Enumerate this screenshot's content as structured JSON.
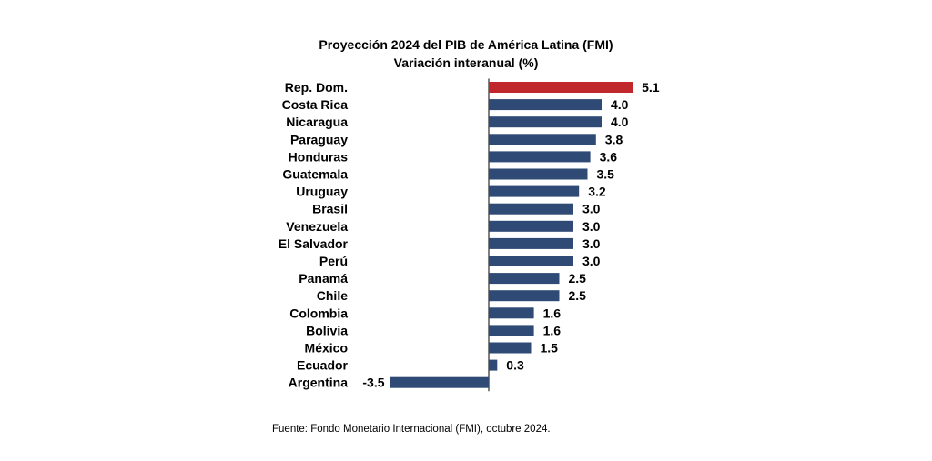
{
  "chart_data": {
    "type": "bar",
    "orientation": "horizontal",
    "title": "Proyección 2024 del PIB de América Latina (FMI)",
    "subtitle": "Variación interanual (%)",
    "categories": [
      "Rep. Dom.",
      "Costa Rica",
      "Nicaragua",
      "Paraguay",
      "Honduras",
      "Guatemala",
      "Uruguay",
      "Brasil",
      "Venezuela",
      "El Salvador",
      "Perú",
      "Panamá",
      "Chile",
      "Colombia",
      "Bolivia",
      "México",
      "Ecuador",
      "Argentina"
    ],
    "values": [
      5.1,
      4.0,
      4.0,
      3.8,
      3.6,
      3.5,
      3.2,
      3.0,
      3.0,
      3.0,
      3.0,
      2.5,
      2.5,
      1.6,
      1.6,
      1.5,
      0.3,
      -3.5
    ],
    "value_labels": [
      "5.1",
      "4.0",
      "4.0",
      "3.8",
      "3.6",
      "3.5",
      "3.2",
      "3.0",
      "3.0",
      "3.0",
      "3.0",
      "2.5",
      "2.5",
      "1.6",
      "1.6",
      "1.5",
      "0.3",
      "-3.5"
    ],
    "highlight_category": "Rep. Dom.",
    "colors": {
      "highlight": "#c0282c",
      "default": "#2e4a75",
      "axis": "#000000"
    },
    "grid": false,
    "legend": "none",
    "source": "Fuente: Fondo Monetario Internacional (FMI), octubre 2024."
  }
}
